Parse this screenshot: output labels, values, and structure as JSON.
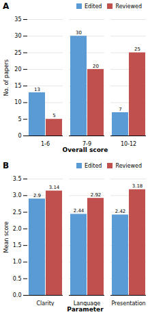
{
  "chart_data": [
    {
      "type": "bar",
      "title": "A",
      "categories": [
        "1-6",
        "7-9",
        "10-12"
      ],
      "series": [
        {
          "name": "Edited",
          "color": "#5B9BD5",
          "values": [
            13,
            30,
            7
          ]
        },
        {
          "name": "Reviewed",
          "color": "#C0504D",
          "values": [
            5,
            20,
            25
          ]
        }
      ],
      "xlabel": "Overall score",
      "ylabel": "No. of papers",
      "ylim": [
        0,
        35
      ],
      "yticks": [
        0,
        5,
        10,
        15,
        20,
        25,
        30,
        35
      ],
      "grid": true,
      "legend": "upper right",
      "data_labels": true
    },
    {
      "type": "bar",
      "title": "B",
      "categories": [
        "Clarity",
        "Language",
        "Presentation"
      ],
      "series": [
        {
          "name": "Edited",
          "color": "#5B9BD5",
          "values": [
            2.9,
            2.44,
            2.42
          ]
        },
        {
          "name": "Reviewed",
          "color": "#C0504D",
          "values": [
            3.14,
            2.92,
            3.18
          ]
        }
      ],
      "xlabel": "Parameter",
      "ylabel": "Mean score",
      "ylim": [
        0,
        3.5
      ],
      "yticks": [
        {
          "value": 0,
          "label": "0.0"
        },
        {
          "value": 0.5,
          "label": "0.5"
        },
        {
          "value": 1,
          "label": "1.0"
        },
        {
          "value": 1.5,
          "label": "1.5"
        },
        {
          "value": 2,
          "label": "2.0"
        },
        {
          "value": 2.5,
          "label": "2.5"
        },
        {
          "value": 3,
          "label": "3.0"
        },
        {
          "value": 3.5,
          "label": "3.5"
        }
      ],
      "grid": true,
      "legend": "upper right",
      "data_labels": true
    }
  ]
}
